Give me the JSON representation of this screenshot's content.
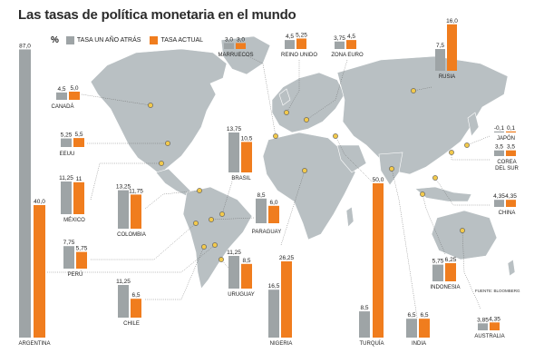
{
  "title": "Las tasas de política monetaria en el mundo",
  "legend": {
    "unit": "%",
    "previous": "TASA UN AÑO ATRÁS",
    "current": "TASA ACTUAL"
  },
  "source": "FUENTE: BLOOMBERG",
  "colors": {
    "previous": "#9ea4a6",
    "current": "#f07d1e",
    "land": "#b9c0c3",
    "water": "#ffffff",
    "leader": "#555555",
    "marker_fill": "#f2c94c"
  },
  "chart_data": {
    "type": "bar",
    "series": [
      {
        "name": "TASA UN AÑO ATRÁS",
        "color": "#9ea4a6"
      },
      {
        "name": "TASA ACTUAL",
        "color": "#f07d1e"
      }
    ],
    "countries": [
      {
        "name": "ARGENTINA",
        "previous": 87.0,
        "current": 40.0,
        "previous_label": "87,0",
        "current_label": "40,0"
      },
      {
        "name": "CANADÁ",
        "previous": 4.5,
        "current": 5.0,
        "previous_label": "4,5",
        "current_label": "5,0"
      },
      {
        "name": "EEUU",
        "previous": 5.25,
        "current": 5.5,
        "previous_label": "5,25",
        "current_label": "5,5"
      },
      {
        "name": "MÉXICO",
        "previous": 11.25,
        "current": 11,
        "previous_label": "11,25",
        "current_label": "11"
      },
      {
        "name": "PERÚ",
        "previous": 7.75,
        "current": 5.75,
        "previous_label": "7,75",
        "current_label": "5,75"
      },
      {
        "name": "COLOMBIA",
        "previous": 13.25,
        "current": 11.75,
        "previous_label": "13,25",
        "current_label": "11,75"
      },
      {
        "name": "CHILE",
        "previous": 11.25,
        "current": 6.5,
        "previous_label": "11,25",
        "current_label": "6,5"
      },
      {
        "name": "BRASIL",
        "previous": 13.75,
        "current": 10.5,
        "previous_label": "13,75",
        "current_label": "10,5"
      },
      {
        "name": "PARAGUAY",
        "previous": 8.5,
        "current": 6.0,
        "previous_label": "8,5",
        "current_label": "6,0"
      },
      {
        "name": "URUGUAY",
        "previous": 11.25,
        "current": 8.5,
        "previous_label": "11,25",
        "current_label": "8,5"
      },
      {
        "name": "MARRUECOS",
        "previous": 3.0,
        "current": 3.0,
        "previous_label": "3,0",
        "current_label": "3,0"
      },
      {
        "name": "REINO UNIDO",
        "previous": 4.5,
        "current": 5.25,
        "previous_label": "4,5",
        "current_label": "5,25"
      },
      {
        "name": "ZONA EURO",
        "previous": 3.75,
        "current": 4.5,
        "previous_label": "3,75",
        "current_label": "4,5"
      },
      {
        "name": "RUSIA",
        "previous": 7.5,
        "current": 16.0,
        "previous_label": "7,5",
        "current_label": "16,0"
      },
      {
        "name": "NIGERIA",
        "previous": 16.5,
        "current": 26.25,
        "previous_label": "16,5",
        "current_label": "26,25"
      },
      {
        "name": "TURQUÍA",
        "previous": 8.5,
        "current": 50.0,
        "previous_label": "8,5",
        "current_label": "50,0"
      },
      {
        "name": "INDIA",
        "previous": 6.5,
        "current": 6.5,
        "previous_label": "6,5",
        "current_label": "6,5"
      },
      {
        "name": "INDONESIA",
        "previous": 5.75,
        "current": 6.25,
        "previous_label": "5,75",
        "current_label": "6,25"
      },
      {
        "name": "JAPÓN",
        "previous": -0.1,
        "current": 0.1,
        "previous_label": "-0,1",
        "current_label": "0,1"
      },
      {
        "name": "COREA DEL SUR",
        "previous": 3.5,
        "current": 3.5,
        "previous_label": "3,5",
        "current_label": "3,5",
        "label_lines": [
          "COREA",
          "DEL SUR"
        ]
      },
      {
        "name": "CHINA",
        "previous": 4.35,
        "current": 4.35,
        "previous_label": "4,35",
        "current_label": "4,35"
      },
      {
        "name": "AUSTRALIA",
        "previous": 3.85,
        "current": 4.35,
        "previous_label": "3,85",
        "current_label": "4,35"
      }
    ]
  }
}
